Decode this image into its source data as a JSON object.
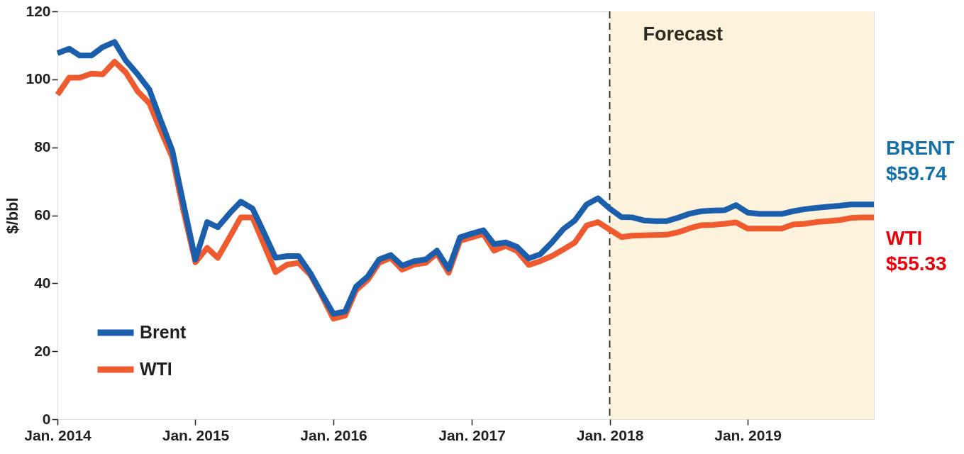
{
  "chart_data": {
    "type": "line",
    "ylabel": "$/bbl",
    "x": [
      "2014-01",
      "2014-02",
      "2014-03",
      "2014-04",
      "2014-05",
      "2014-06",
      "2014-07",
      "2014-08",
      "2014-09",
      "2014-10",
      "2014-11",
      "2014-12",
      "2015-01",
      "2015-02",
      "2015-03",
      "2015-04",
      "2015-05",
      "2015-06",
      "2015-07",
      "2015-08",
      "2015-09",
      "2015-10",
      "2015-11",
      "2015-12",
      "2016-01",
      "2016-02",
      "2016-03",
      "2016-04",
      "2016-05",
      "2016-06",
      "2016-07",
      "2016-08",
      "2016-09",
      "2016-10",
      "2016-11",
      "2016-12",
      "2017-01",
      "2017-02",
      "2017-03",
      "2017-04",
      "2017-05",
      "2017-06",
      "2017-07",
      "2017-08",
      "2017-09",
      "2017-10",
      "2017-11",
      "2017-12",
      "2018-01",
      "2018-02",
      "2018-03",
      "2018-04",
      "2018-05",
      "2018-06",
      "2018-07",
      "2018-08",
      "2018-09",
      "2018-10",
      "2018-11",
      "2018-12",
      "2019-01",
      "2019-02",
      "2019-03",
      "2019-04",
      "2019-05",
      "2019-06",
      "2019-07",
      "2019-08",
      "2019-09",
      "2019-10",
      "2019-11",
      "2019-12"
    ],
    "series": [
      {
        "name": "Brent",
        "color": "#1b5eab",
        "values": [
          107.7,
          109,
          107,
          107,
          109.5,
          111,
          105.5,
          101.5,
          97,
          88,
          79,
          63,
          47,
          58,
          56.5,
          60.5,
          64,
          62,
          55,
          47.5,
          48,
          48,
          43,
          37,
          31,
          31.7,
          39,
          42,
          47,
          48.3,
          45.2,
          46.5,
          47,
          49.6,
          44.2,
          53.5,
          54.6,
          55.6,
          51.5,
          52,
          50.7,
          47.3,
          48.5,
          52,
          56,
          58.5,
          63.2,
          65,
          62,
          59.5,
          59.4,
          58.5,
          58.3,
          58.3,
          59.3,
          60.5,
          61.2,
          61.4,
          61.5,
          63,
          60.8,
          60.4,
          60.4,
          60.4,
          61.2,
          61.8,
          62.2,
          62.5,
          62.8,
          63.2,
          63.2,
          63.2
        ]
      },
      {
        "name": "WTI",
        "color": "#ef5a2f",
        "values": [
          95.5,
          100.5,
          100.5,
          101.7,
          101.5,
          105.2,
          102,
          96.5,
          93,
          85,
          77,
          61,
          46.2,
          50.4,
          47.5,
          53.5,
          59.4,
          59.4,
          51.5,
          43.3,
          45.5,
          46,
          42.5,
          36.5,
          29.6,
          30.5,
          38,
          41,
          46,
          47.5,
          44,
          45.5,
          46,
          48.8,
          43.1,
          52.5,
          53.5,
          54.5,
          49.6,
          51,
          49.5,
          45.4,
          46.5,
          48,
          50,
          52,
          57,
          58,
          55.8,
          53.6,
          54,
          54.1,
          54.2,
          54.3,
          55,
          56.2,
          57.1,
          57.2,
          57.5,
          57.9,
          56.1,
          56.1,
          56.1,
          56.1,
          57.3,
          57.5,
          58,
          58.3,
          58.6,
          59.2,
          59.4,
          59.4
        ]
      }
    ],
    "xlim": [
      "2014-01",
      "2019-12"
    ],
    "xticks": [
      {
        "value": "2014-01",
        "label": "Jan. 2014"
      },
      {
        "value": "2015-01",
        "label": "Jan. 2015"
      },
      {
        "value": "2016-01",
        "label": "Jan. 2016"
      },
      {
        "value": "2017-01",
        "label": "Jan. 2017"
      },
      {
        "value": "2018-01",
        "label": "Jan. 2018"
      },
      {
        "value": "2019-01",
        "label": "Jan. 2019"
      }
    ],
    "ylim": [
      0,
      120
    ],
    "yticks": [
      0,
      20,
      40,
      60,
      80,
      100,
      120
    ],
    "ref_lines": [
      {
        "axis": "x",
        "value": "2018-01",
        "color": "#222222",
        "line_style": "dashed"
      }
    ],
    "bands": [
      {
        "axis": "x",
        "from": "2018-01",
        "to": "2019-12",
        "label": "Forecast",
        "color": "#fdf3dc"
      }
    ],
    "annotations": [
      "BRENT\n$59.74",
      "WTI\n$55.33"
    ],
    "legend": "bottom left"
  }
}
